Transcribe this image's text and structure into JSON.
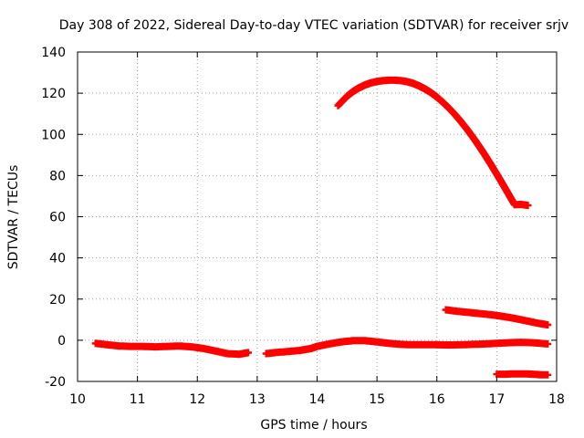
{
  "chart_data": {
    "type": "scatter",
    "title": "Day 308 of 2022, Sidereal Day-to-day VTEC variation (SDTVAR) for receiver srjv",
    "xlabel": "GPS time / hours",
    "ylabel": "SDTVAR / TECUs",
    "xlim": [
      10,
      18
    ],
    "ylim": [
      -20,
      140
    ],
    "xticks": [
      10,
      11,
      12,
      13,
      14,
      15,
      16,
      17,
      18
    ],
    "yticks": [
      -20,
      0,
      20,
      40,
      60,
      80,
      100,
      120,
      140
    ],
    "grid": true,
    "marker": "plus",
    "colors": {
      "series": "#ff0000",
      "grid": "#a0a0a0",
      "axis": "#000000"
    },
    "series": [
      {
        "name": "segment-1",
        "x": [
          10.3,
          10.5,
          10.7,
          10.9,
          11.1,
          11.3,
          11.5,
          11.7,
          11.9,
          12.1,
          12.3,
          12.5,
          12.7,
          12.85
        ],
        "y": [
          -1.5,
          -2.2,
          -2.8,
          -3.0,
          -3.0,
          -3.2,
          -3.0,
          -2.8,
          -3.2,
          -4.0,
          -5.2,
          -6.5,
          -6.8,
          -6.0
        ]
      },
      {
        "name": "segment-2",
        "x": [
          13.15,
          13.3,
          13.5,
          13.7,
          13.8,
          13.9,
          14.0,
          14.2,
          14.4,
          14.6,
          14.8,
          15.0,
          15.2,
          15.4,
          15.6,
          15.8,
          16.0,
          16.2,
          16.4,
          16.6,
          16.8,
          17.0,
          17.2,
          17.4,
          17.6,
          17.85
        ],
        "y": [
          -6.5,
          -6.0,
          -5.5,
          -5.0,
          -4.5,
          -4.0,
          -3.0,
          -1.8,
          -0.8,
          -0.2,
          -0.2,
          -0.8,
          -1.5,
          -2.0,
          -2.2,
          -2.2,
          -2.2,
          -2.3,
          -2.2,
          -2.0,
          -1.8,
          -1.5,
          -1.2,
          -1.0,
          -1.2,
          -1.8
        ]
      },
      {
        "name": "segment-3",
        "x": [
          14.35,
          14.5,
          14.6,
          14.7,
          14.8,
          14.9,
          15.0,
          15.1,
          15.2,
          15.3,
          15.4,
          15.5,
          15.6,
          15.7,
          15.8,
          15.9,
          16.0,
          16.1,
          16.2,
          16.3,
          16.4,
          16.5,
          16.6,
          16.7,
          16.8,
          16.9,
          17.0,
          17.1,
          17.2,
          17.3,
          17.4,
          17.52
        ],
        "y": [
          114,
          118.5,
          120.8,
          122.6,
          124.0,
          125.0,
          125.7,
          126.1,
          126.3,
          126.3,
          126.1,
          125.6,
          124.8,
          123.6,
          122.1,
          120.3,
          118.1,
          115.6,
          112.8,
          109.7,
          106.3,
          102.6,
          98.7,
          94.5,
          90.1,
          85.5,
          80.7,
          75.8,
          70.8,
          65.8,
          66,
          65.5
        ]
      },
      {
        "name": "segment-4",
        "x": [
          16.15,
          16.3,
          16.5,
          16.7,
          16.9,
          17.1,
          17.3,
          17.5,
          17.7,
          17.85
        ],
        "y": [
          14.8,
          14.2,
          13.6,
          13.0,
          12.4,
          11.6,
          10.6,
          9.4,
          8.2,
          7.5
        ]
      },
      {
        "name": "segment-5",
        "x": [
          17.0,
          17.15,
          17.3,
          17.45,
          17.6,
          17.75,
          17.85
        ],
        "y": [
          -16.5,
          -16.5,
          -16.3,
          -16.3,
          -16.5,
          -16.8,
          -16.8
        ]
      }
    ]
  }
}
